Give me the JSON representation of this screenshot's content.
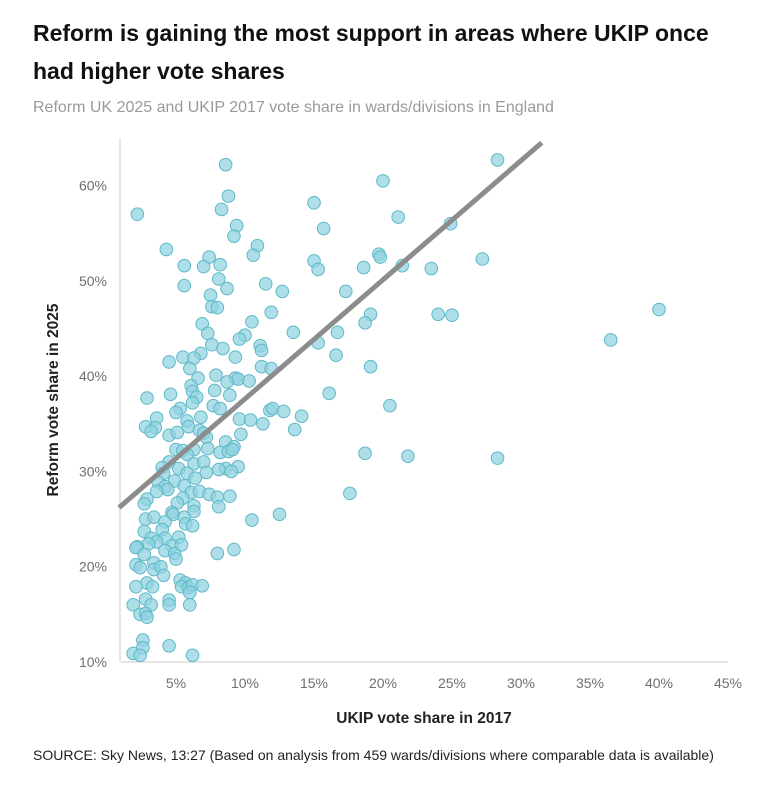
{
  "title": "Reform is gaining the most support in areas where UKIP once had higher vote shares",
  "subtitle": "Reform UK 2025 and UKIP 2017 vote share in wards/divisions in England",
  "source": "SOURCE: Sky News, 13:27 (Based on analysis from 459 wards/divisions where comparable data is available)",
  "colors": {
    "point_fill": "#8fd3df",
    "point_stroke": "#5fb8c8",
    "trend": "#8c8c8c",
    "axis": "#cccccc"
  },
  "chart_data": {
    "type": "scatter",
    "xlabel": "UKIP vote share in 2017",
    "ylabel": "Reform vote share in 2025",
    "xlim": [
      0,
      45
    ],
    "ylim": [
      10,
      65
    ],
    "x_ticks": [
      "5%",
      "10%",
      "15%",
      "20%",
      "25%",
      "30%",
      "35%",
      "40%",
      "45%"
    ],
    "y_ticks": [
      "10%",
      "20%",
      "30%",
      "40%",
      "50%",
      "60%"
    ],
    "trend_line": {
      "x": [
        0,
        31.5
      ],
      "y": [
        25.5,
        64.5
      ]
    },
    "points": [
      [
        2.2,
        57.0
      ],
      [
        8.6,
        62.2
      ],
      [
        28.3,
        62.7
      ],
      [
        20.0,
        60.5
      ],
      [
        15.0,
        58.2
      ],
      [
        8.8,
        58.9
      ],
      [
        8.3,
        57.5
      ],
      [
        21.1,
        56.7
      ],
      [
        9.4,
        55.8
      ],
      [
        15.7,
        55.5
      ],
      [
        24.9,
        56.0
      ],
      [
        9.2,
        54.7
      ],
      [
        10.9,
        53.7
      ],
      [
        4.3,
        53.3
      ],
      [
        10.6,
        52.7
      ],
      [
        7.4,
        52.5
      ],
      [
        19.7,
        52.8
      ],
      [
        19.8,
        52.5
      ],
      [
        27.2,
        52.3
      ],
      [
        15.0,
        52.1
      ],
      [
        5.6,
        51.6
      ],
      [
        7.0,
        51.5
      ],
      [
        8.2,
        51.7
      ],
      [
        15.3,
        51.2
      ],
      [
        18.6,
        51.4
      ],
      [
        21.4,
        51.6
      ],
      [
        23.5,
        51.3
      ],
      [
        8.1,
        50.2
      ],
      [
        5.6,
        49.5
      ],
      [
        11.5,
        49.7
      ],
      [
        8.7,
        49.2
      ],
      [
        12.7,
        48.9
      ],
      [
        17.3,
        48.9
      ],
      [
        7.5,
        48.5
      ],
      [
        7.6,
        47.3
      ],
      [
        8.0,
        47.2
      ],
      [
        11.9,
        46.7
      ],
      [
        19.1,
        46.5
      ],
      [
        24.0,
        46.5
      ],
      [
        25.0,
        46.4
      ],
      [
        40.0,
        47.0
      ],
      [
        6.9,
        45.5
      ],
      [
        10.5,
        45.7
      ],
      [
        18.7,
        45.6
      ],
      [
        13.5,
        44.6
      ],
      [
        16.7,
        44.6
      ],
      [
        7.3,
        44.5
      ],
      [
        10.0,
        44.3
      ],
      [
        9.6,
        43.9
      ],
      [
        36.5,
        43.8
      ],
      [
        15.3,
        43.5
      ],
      [
        7.6,
        43.3
      ],
      [
        11.1,
        43.2
      ],
      [
        11.2,
        42.7
      ],
      [
        6.8,
        42.4
      ],
      [
        8.4,
        42.9
      ],
      [
        5.5,
        42.0
      ],
      [
        6.3,
        41.9
      ],
      [
        9.3,
        42.0
      ],
      [
        16.6,
        42.2
      ],
      [
        4.5,
        41.5
      ],
      [
        6.0,
        40.8
      ],
      [
        11.2,
        41.0
      ],
      [
        11.9,
        40.8
      ],
      [
        19.1,
        41.0
      ],
      [
        6.6,
        39.8
      ],
      [
        9.3,
        39.8
      ],
      [
        9.5,
        39.7
      ],
      [
        10.3,
        39.5
      ],
      [
        7.9,
        40.1
      ],
      [
        6.1,
        39.0
      ],
      [
        8.7,
        39.4
      ],
      [
        4.6,
        38.1
      ],
      [
        6.2,
        38.4
      ],
      [
        6.5,
        37.8
      ],
      [
        7.8,
        38.5
      ],
      [
        8.9,
        38.0
      ],
      [
        2.9,
        37.7
      ],
      [
        16.1,
        38.2
      ],
      [
        6.2,
        37.2
      ],
      [
        5.3,
        36.6
      ],
      [
        7.7,
        36.9
      ],
      [
        8.2,
        36.6
      ],
      [
        11.8,
        36.4
      ],
      [
        12.0,
        36.6
      ],
      [
        12.8,
        36.3
      ],
      [
        20.5,
        36.9
      ],
      [
        5.0,
        36.2
      ],
      [
        14.1,
        35.8
      ],
      [
        3.6,
        35.6
      ],
      [
        6.8,
        35.7
      ],
      [
        9.6,
        35.5
      ],
      [
        10.4,
        35.4
      ],
      [
        11.3,
        35.0
      ],
      [
        5.8,
        35.3
      ],
      [
        2.8,
        34.7
      ],
      [
        3.5,
        34.6
      ],
      [
        5.9,
        34.7
      ],
      [
        6.7,
        34.3
      ],
      [
        13.6,
        34.4
      ],
      [
        3.2,
        34.2
      ],
      [
        4.5,
        33.8
      ],
      [
        5.1,
        34.1
      ],
      [
        7.0,
        34.0
      ],
      [
        7.2,
        33.6
      ],
      [
        9.7,
        33.9
      ],
      [
        8.6,
        33.1
      ],
      [
        9.2,
        32.6
      ],
      [
        5.0,
        32.3
      ],
      [
        5.5,
        32.2
      ],
      [
        6.3,
        32.3
      ],
      [
        7.3,
        32.4
      ],
      [
        8.2,
        32.0
      ],
      [
        8.8,
        32.1
      ],
      [
        9.1,
        32.3
      ],
      [
        5.8,
        31.8
      ],
      [
        18.7,
        31.9
      ],
      [
        21.8,
        31.6
      ],
      [
        28.3,
        31.4
      ],
      [
        4.5,
        31.0
      ],
      [
        6.3,
        30.8
      ],
      [
        7.0,
        31.0
      ],
      [
        9.5,
        30.5
      ],
      [
        5.2,
        30.3
      ],
      [
        8.6,
        30.3
      ],
      [
        8.1,
        30.2
      ],
      [
        4.0,
        30.4
      ],
      [
        4.1,
        29.8
      ],
      [
        5.8,
        29.8
      ],
      [
        6.4,
        29.3
      ],
      [
        7.2,
        29.9
      ],
      [
        9.0,
        30.0
      ],
      [
        3.7,
        28.9
      ],
      [
        4.9,
        29.0
      ],
      [
        5.6,
        28.5
      ],
      [
        4.2,
        28.4
      ],
      [
        4.4,
        28.1
      ],
      [
        6.1,
        27.8
      ],
      [
        6.7,
        27.9
      ],
      [
        7.4,
        27.6
      ],
      [
        8.0,
        27.3
      ],
      [
        8.9,
        27.4
      ],
      [
        17.6,
        27.7
      ],
      [
        3.6,
        27.9
      ],
      [
        5.5,
        27.2
      ],
      [
        2.9,
        27.1
      ],
      [
        5.1,
        26.7
      ],
      [
        6.3,
        26.4
      ],
      [
        8.1,
        26.3
      ],
      [
        2.7,
        26.6
      ],
      [
        4.7,
        25.7
      ],
      [
        6.3,
        25.8
      ],
      [
        12.5,
        25.5
      ],
      [
        2.8,
        25.0
      ],
      [
        3.4,
        25.2
      ],
      [
        4.8,
        25.5
      ],
      [
        5.6,
        25.2
      ],
      [
        10.5,
        24.9
      ],
      [
        4.2,
        24.7
      ],
      [
        5.7,
        24.5
      ],
      [
        4.0,
        23.9
      ],
      [
        6.2,
        24.3
      ],
      [
        2.7,
        23.7
      ],
      [
        3.2,
        23.0
      ],
      [
        4.2,
        23.0
      ],
      [
        5.2,
        23.1
      ],
      [
        3.6,
        22.6
      ],
      [
        4.7,
        22.2
      ],
      [
        3.0,
        22.4
      ],
      [
        2.2,
        22.1
      ],
      [
        4.2,
        21.7
      ],
      [
        2.1,
        22.0
      ],
      [
        4.9,
        21.4
      ],
      [
        5.4,
        22.3
      ],
      [
        8.0,
        21.4
      ],
      [
        9.2,
        21.8
      ],
      [
        2.7,
        21.3
      ],
      [
        3.4,
        20.4
      ],
      [
        5.0,
        20.8
      ],
      [
        2.1,
        20.2
      ],
      [
        2.4,
        19.9
      ],
      [
        3.4,
        19.7
      ],
      [
        3.9,
        20.0
      ],
      [
        4.1,
        19.1
      ],
      [
        5.3,
        18.6
      ],
      [
        2.9,
        18.3
      ],
      [
        2.1,
        17.9
      ],
      [
        3.3,
        17.9
      ],
      [
        5.7,
        18.3
      ],
      [
        5.4,
        17.9
      ],
      [
        5.9,
        17.8
      ],
      [
        6.2,
        18.1
      ],
      [
        6.9,
        18.0
      ],
      [
        6.0,
        17.3
      ],
      [
        2.8,
        16.6
      ],
      [
        4.5,
        16.5
      ],
      [
        3.2,
        16.0
      ],
      [
        1.9,
        16.0
      ],
      [
        4.5,
        16.0
      ],
      [
        6.0,
        16.0
      ],
      [
        2.4,
        15.0
      ],
      [
        2.8,
        15.1
      ],
      [
        2.9,
        14.7
      ],
      [
        2.6,
        12.3
      ],
      [
        4.5,
        11.7
      ],
      [
        2.6,
        11.5
      ],
      [
        1.9,
        10.9
      ],
      [
        2.4,
        10.7
      ],
      [
        6.2,
        10.7
      ]
    ]
  }
}
